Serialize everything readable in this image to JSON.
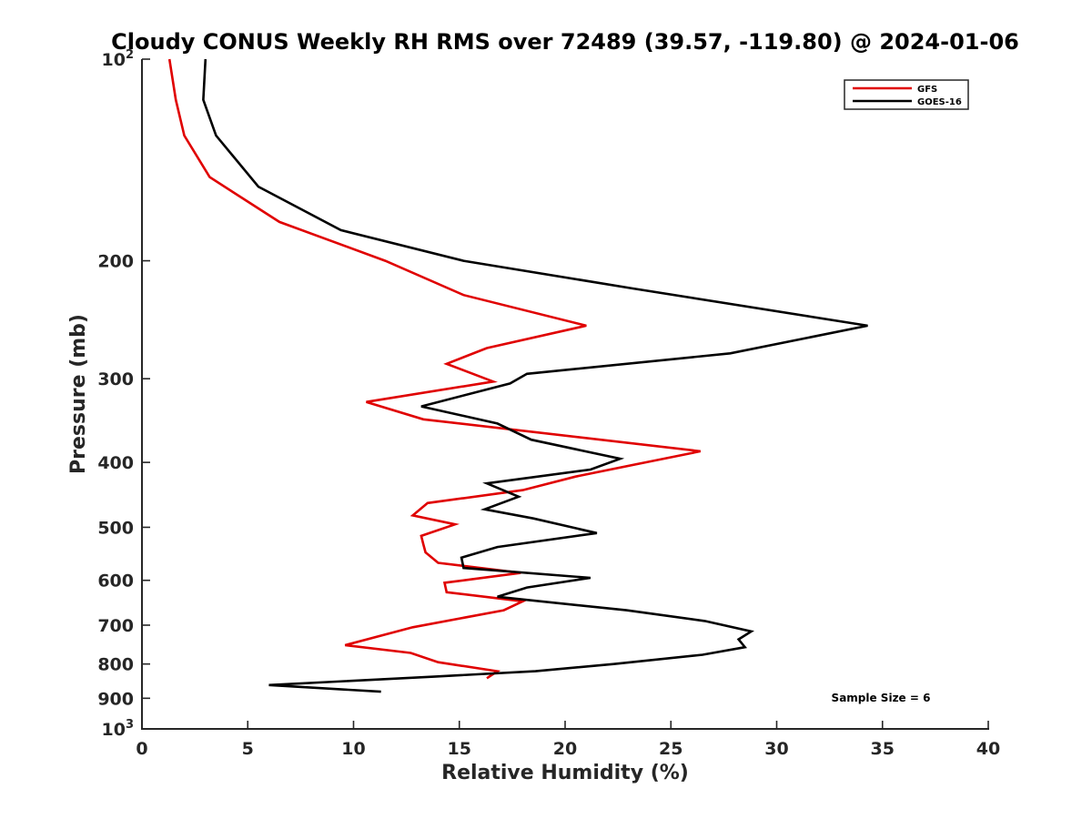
{
  "chart_data": {
    "type": "line",
    "title": "Cloudy CONUS Weekly RH RMS over 72489 (39.57, -119.80) @ 2024-01-06",
    "xlabel": "Relative Humidity (%)",
    "ylabel": "Pressure (mb)",
    "xlim": [
      0,
      40
    ],
    "ylim": [
      100,
      1000
    ],
    "y_scale": "log",
    "y_reversed": true,
    "x_ticks": [
      0,
      5,
      10,
      15,
      20,
      25,
      30,
      35,
      40
    ],
    "x_tick_labels": [
      "0",
      "5",
      "10",
      "15",
      "20",
      "25",
      "30",
      "35",
      "40"
    ],
    "y_ticks": [
      100,
      200,
      300,
      400,
      500,
      600,
      700,
      800,
      900,
      1000
    ],
    "y_tick_labels": [
      {
        "base": "10",
        "exp": "2"
      },
      {
        "base": "200",
        "exp": ""
      },
      {
        "base": "300",
        "exp": ""
      },
      {
        "base": "400",
        "exp": ""
      },
      {
        "base": "500",
        "exp": ""
      },
      {
        "base": "600",
        "exp": ""
      },
      {
        "base": "700",
        "exp": ""
      },
      {
        "base": "800",
        "exp": ""
      },
      {
        "base": "900",
        "exp": ""
      },
      {
        "base": "10",
        "exp": "3"
      }
    ],
    "grid": false,
    "legend_position": "top-right",
    "annotation": "Sample Size = 6",
    "series": [
      {
        "name": "GFS",
        "color": "#e00000",
        "points": [
          [
            1.3,
            100
          ],
          [
            1.6,
            115
          ],
          [
            2.0,
            130
          ],
          [
            3.2,
            150
          ],
          [
            6.5,
            175
          ],
          [
            11.5,
            200
          ],
          [
            15.2,
            225
          ],
          [
            21.0,
            250
          ],
          [
            16.3,
            270
          ],
          [
            14.4,
            285
          ],
          [
            16.6,
            303
          ],
          [
            10.6,
            325
          ],
          [
            13.3,
            345
          ],
          [
            26.4,
            385
          ],
          [
            23.8,
            400
          ],
          [
            20.5,
            420
          ],
          [
            18.0,
            440
          ],
          [
            13.5,
            460
          ],
          [
            12.8,
            480
          ],
          [
            14.8,
            495
          ],
          [
            13.2,
            515
          ],
          [
            13.3,
            530
          ],
          [
            13.4,
            545
          ],
          [
            14.0,
            565
          ],
          [
            17.9,
            585
          ],
          [
            14.3,
            605
          ],
          [
            14.4,
            625
          ],
          [
            18.0,
            645
          ],
          [
            17.1,
            665
          ],
          [
            12.8,
            705
          ],
          [
            9.6,
            750
          ],
          [
            12.7,
            770
          ],
          [
            14.0,
            795
          ],
          [
            16.8,
            820
          ],
          [
            16.3,
            840
          ]
        ]
      },
      {
        "name": "GOES-16",
        "color": "#000000",
        "points": [
          [
            3.0,
            100
          ],
          [
            2.9,
            115
          ],
          [
            3.5,
            130
          ],
          [
            5.5,
            155
          ],
          [
            9.4,
            180
          ],
          [
            15.2,
            200
          ],
          [
            23.2,
            220
          ],
          [
            34.3,
            250
          ],
          [
            27.8,
            275
          ],
          [
            18.2,
            295
          ],
          [
            17.4,
            305
          ],
          [
            13.2,
            330
          ],
          [
            16.8,
            350
          ],
          [
            18.4,
            370
          ],
          [
            22.6,
            395
          ],
          [
            21.2,
            410
          ],
          [
            16.3,
            430
          ],
          [
            17.8,
            450
          ],
          [
            16.2,
            470
          ],
          [
            18.5,
            485
          ],
          [
            21.5,
            510
          ],
          [
            16.8,
            535
          ],
          [
            15.1,
            555
          ],
          [
            15.2,
            575
          ],
          [
            21.2,
            595
          ],
          [
            18.2,
            615
          ],
          [
            16.8,
            635
          ],
          [
            22.9,
            665
          ],
          [
            26.6,
            690
          ],
          [
            28.8,
            715
          ],
          [
            28.2,
            735
          ],
          [
            28.5,
            755
          ],
          [
            26.5,
            775
          ],
          [
            22.3,
            800
          ],
          [
            18.6,
            820
          ],
          [
            13.9,
            835
          ],
          [
            6.0,
            860
          ],
          [
            11.3,
            880
          ]
        ]
      }
    ]
  }
}
